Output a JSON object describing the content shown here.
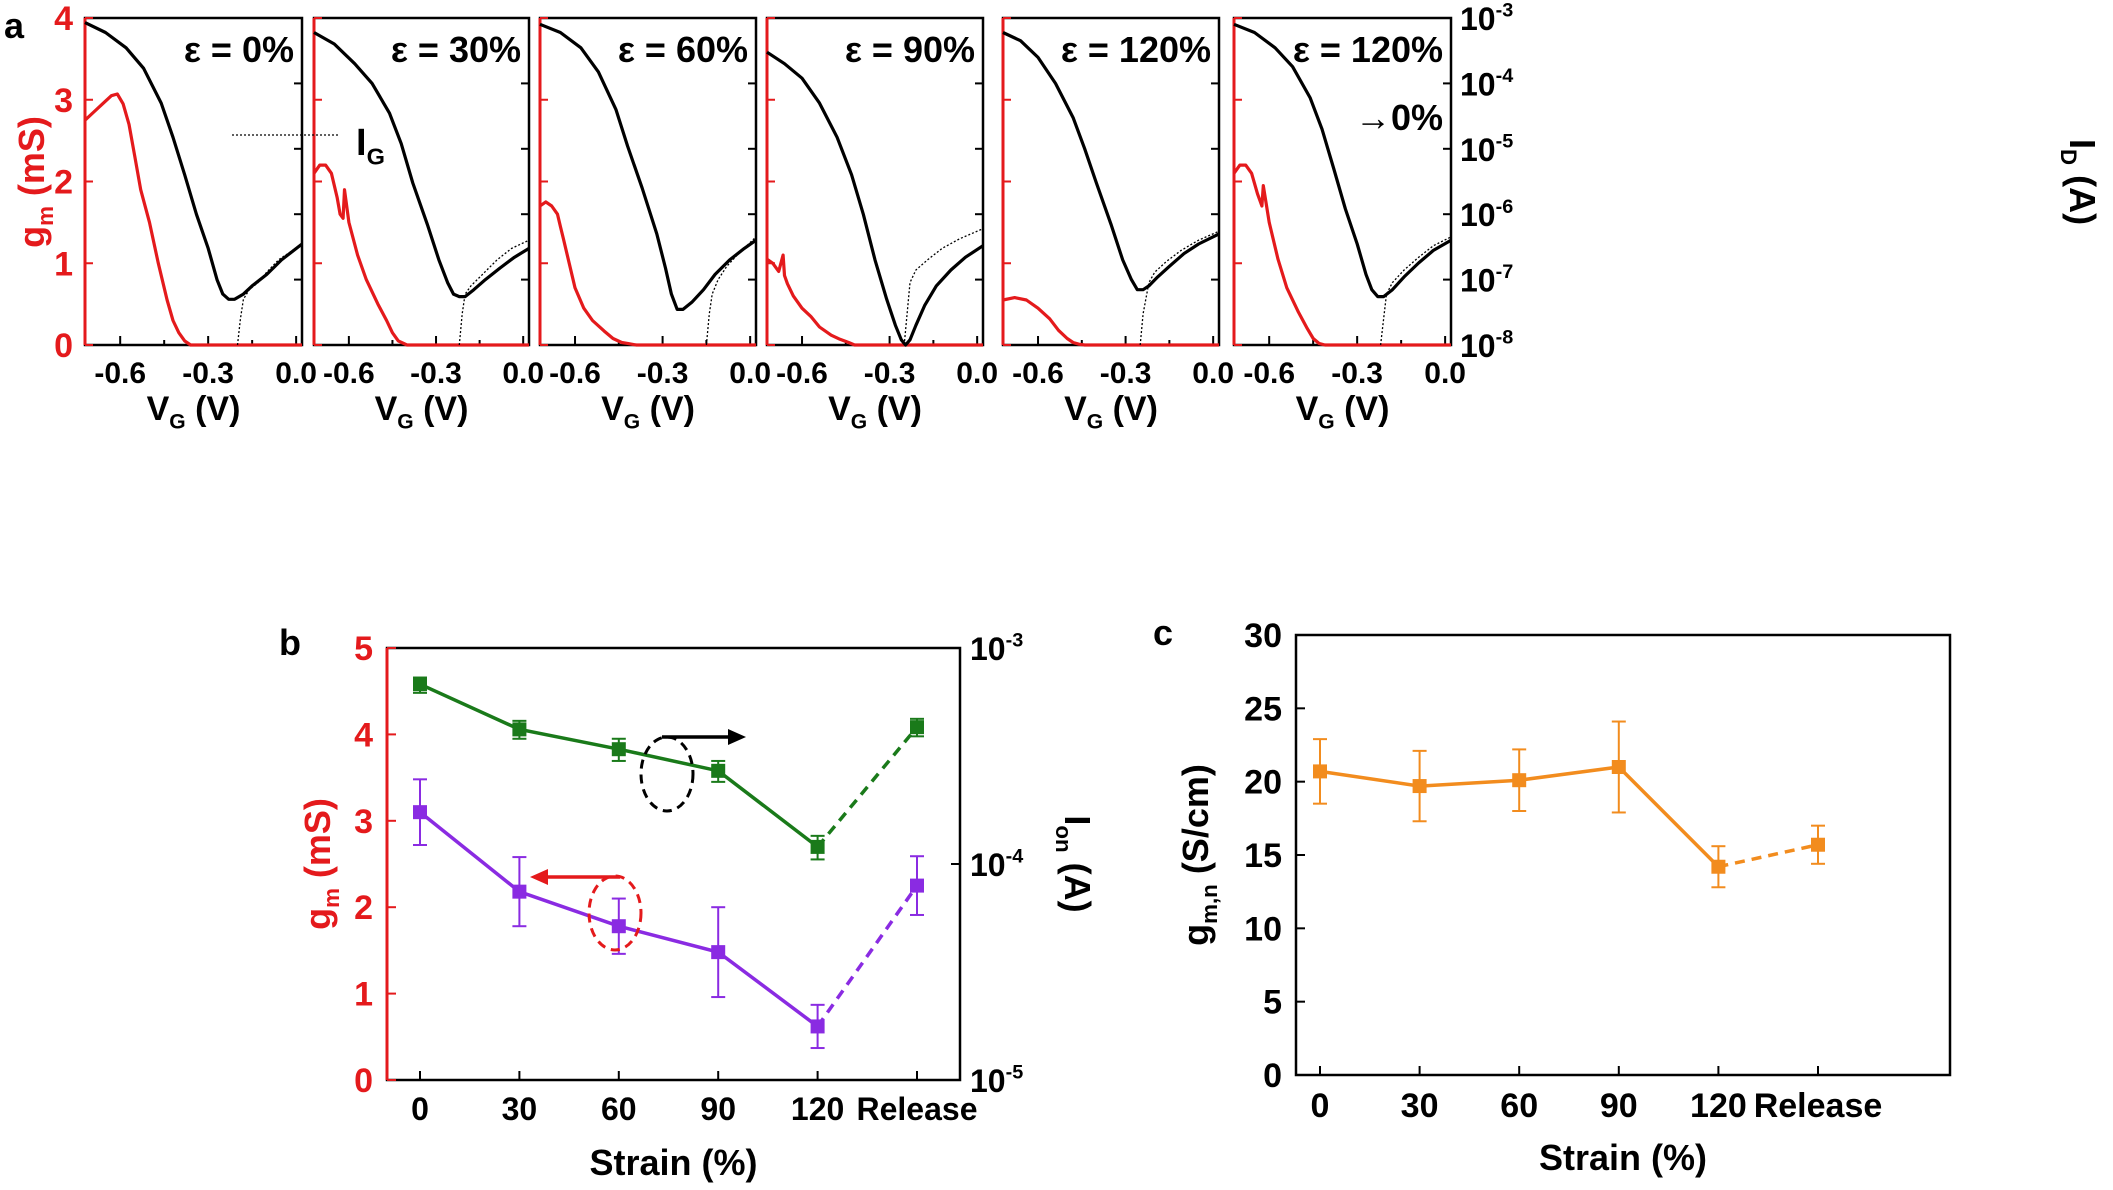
{
  "colors": {
    "red": "#e41a1c",
    "black": "#000000",
    "green": "#1a7a1a",
    "purple": "#8a2be2",
    "orange": "#f28c1e"
  },
  "panel_a": {
    "label": "a",
    "left_axis_label": {
      "base": "g",
      "sub": "m",
      "rest": " (mS)"
    },
    "right_axis_label": {
      "base": "I",
      "sub": "D",
      "rest": " (A)"
    },
    "x_axis_label": {
      "base": "V",
      "sub": "G",
      "rest": " (V)"
    },
    "left_ticks": [
      "0",
      "1",
      "2",
      "3",
      "4"
    ],
    "right_ticks": [
      {
        "base": "10",
        "exp": "-8"
      },
      {
        "base": "10",
        "exp": "-7"
      },
      {
        "base": "10",
        "exp": "-6"
      },
      {
        "base": "10",
        "exp": "-5"
      },
      {
        "base": "10",
        "exp": "-4"
      },
      {
        "base": "10",
        "exp": "-3"
      }
    ],
    "x_ticks": [
      "-0.6",
      "-0.3",
      "0.0"
    ],
    "legend": {
      "base": "I",
      "sub": "G"
    }
  },
  "panel_b": {
    "label": "b",
    "y_left_label": {
      "base": "g",
      "sub": "m",
      "rest": " (mS)"
    },
    "y_right_label": {
      "base": "I",
      "sub": "on",
      "rest": " (A)"
    },
    "x_label": "Strain (%)",
    "x_categories": [
      "0",
      "30",
      "60",
      "90",
      "120",
      "Release"
    ],
    "y_left_ticks": [
      "0",
      "1",
      "2",
      "3",
      "4",
      "5"
    ],
    "y_right_ticks": [
      {
        "base": "10",
        "exp": "-5"
      },
      {
        "base": "10",
        "exp": "-4"
      },
      {
        "base": "10",
        "exp": "-3"
      }
    ]
  },
  "panel_c": {
    "label": "c",
    "y_label": {
      "base": "g",
      "sub": "m,n",
      "rest": " (S/cm)"
    },
    "x_label": "Strain (%)",
    "x_categories": [
      "0",
      "30",
      "60",
      "90",
      "120",
      "Release"
    ],
    "y_ticks": [
      "0",
      "5",
      "10",
      "15",
      "20",
      "25",
      "30"
    ]
  },
  "chart_data": [
    {
      "type": "line",
      "title": "ε = 0%",
      "xlabel": "VG (V)",
      "ylabel": "gm (mS)",
      "y2label": "ID (A)",
      "xlim": [
        -0.72,
        0.02
      ],
      "ylim": [
        0,
        4
      ],
      "y2lim": [
        1e-08,
        0.001
      ],
      "series": [
        {
          "name": "gm",
          "axis": "left",
          "x": [
            -0.72,
            -0.69,
            -0.66,
            -0.63,
            -0.61,
            -0.59,
            -0.57,
            -0.55,
            -0.53,
            -0.5,
            -0.47,
            -0.44,
            -0.42,
            -0.4,
            -0.38,
            -0.36,
            0.02
          ],
          "values": [
            2.75,
            2.85,
            2.95,
            3.05,
            3.07,
            2.95,
            2.7,
            2.3,
            1.9,
            1.5,
            1.0,
            0.55,
            0.3,
            0.15,
            0.05,
            0.0,
            0.0
          ]
        },
        {
          "name": "ID",
          "axis": "right",
          "x": [
            -0.72,
            -0.65,
            -0.58,
            -0.52,
            -0.46,
            -0.42,
            -0.38,
            -0.34,
            -0.3,
            -0.27,
            -0.25,
            -0.23,
            -0.21,
            -0.18,
            -0.15,
            -0.1,
            -0.05,
            0.02
          ],
          "values": [
            0.00085,
            0.0006,
            0.00035,
            0.00017,
            5e-05,
            1.5e-05,
            4e-06,
            1e-06,
            3e-07,
            1e-07,
            6e-08,
            5e-08,
            5e-08,
            6e-08,
            8e-08,
            1.2e-07,
            2e-07,
            3.5e-07
          ]
        },
        {
          "name": "IG",
          "axis": "right",
          "x": [
            -0.2,
            -0.19,
            -0.18,
            -0.16,
            -0.13,
            -0.1,
            -0.06,
            0.02
          ],
          "values": [
            1e-08,
            2.5e-08,
            5e-08,
            7e-08,
            9e-08,
            1.3e-07,
            2e-07,
            3.5e-07
          ]
        }
      ]
    },
    {
      "type": "line",
      "title": "ε = 30%",
      "xlabel": "VG (V)",
      "ylabel": "gm (mS)",
      "y2label": "ID (A)",
      "xlim": [
        -0.72,
        0.02
      ],
      "ylim": [
        0,
        4
      ],
      "y2lim": [
        1e-08,
        0.001
      ],
      "series": [
        {
          "name": "gm",
          "axis": "left",
          "x": [
            -0.72,
            -0.7,
            -0.68,
            -0.66,
            -0.64,
            -0.63,
            -0.62,
            -0.615,
            -0.6,
            -0.57,
            -0.54,
            -0.5,
            -0.47,
            -0.45,
            -0.43,
            -0.4,
            0.02
          ],
          "values": [
            2.1,
            2.2,
            2.2,
            2.1,
            1.8,
            1.6,
            1.55,
            1.9,
            1.5,
            1.1,
            0.8,
            0.5,
            0.3,
            0.15,
            0.05,
            0.0,
            0.0
          ]
        },
        {
          "name": "ID",
          "axis": "right",
          "x": [
            -0.72,
            -0.65,
            -0.58,
            -0.52,
            -0.46,
            -0.42,
            -0.38,
            -0.33,
            -0.29,
            -0.26,
            -0.24,
            -0.22,
            -0.2,
            -0.17,
            -0.13,
            -0.08,
            -0.03,
            0.02
          ],
          "values": [
            0.0006,
            0.0004,
            0.0002,
            0.0001,
            3.5e-05,
            1.2e-05,
            3e-06,
            7e-07,
            2e-07,
            9e-08,
            6e-08,
            5.5e-08,
            5.5e-08,
            7e-08,
            1e-07,
            1.5e-07,
            2.2e-07,
            3e-07
          ]
        },
        {
          "name": "IG",
          "axis": "right",
          "x": [
            -0.22,
            -0.21,
            -0.2,
            -0.18,
            -0.14,
            -0.09,
            -0.04,
            0.02
          ],
          "values": [
            1e-08,
            3e-08,
            6e-08,
            8e-08,
            1.2e-07,
            2e-07,
            3e-07,
            4e-07
          ]
        }
      ]
    },
    {
      "type": "line",
      "title": "ε = 60%",
      "xlabel": "VG (V)",
      "ylabel": "gm (mS)",
      "y2label": "ID (A)",
      "xlim": [
        -0.72,
        0.02
      ],
      "ylim": [
        0,
        4
      ],
      "y2lim": [
        1e-08,
        0.001
      ],
      "series": [
        {
          "name": "gm",
          "axis": "left",
          "x": [
            -0.72,
            -0.7,
            -0.68,
            -0.66,
            -0.65,
            -0.64,
            -0.62,
            -0.6,
            -0.57,
            -0.54,
            -0.5,
            -0.47,
            -0.44,
            -0.42,
            -0.39,
            -0.36,
            0.02
          ],
          "values": [
            1.7,
            1.75,
            1.7,
            1.6,
            1.45,
            1.3,
            1.0,
            0.7,
            0.45,
            0.3,
            0.17,
            0.08,
            0.03,
            0.02,
            0.0,
            0.0,
            0.0
          ]
        },
        {
          "name": "ID",
          "axis": "right",
          "x": [
            -0.72,
            -0.65,
            -0.58,
            -0.52,
            -0.46,
            -0.42,
            -0.37,
            -0.32,
            -0.29,
            -0.27,
            -0.25,
            -0.23,
            -0.2,
            -0.16,
            -0.12,
            -0.07,
            -0.02,
            0.02
          ],
          "values": [
            0.0008,
            0.0006,
            0.00035,
            0.00015,
            4e-05,
            1.1e-05,
            2.5e-06,
            5e-07,
            1.5e-07,
            6e-08,
            3.5e-08,
            3.5e-08,
            4.5e-08,
            7e-08,
            1.2e-07,
            2e-07,
            3e-07,
            4e-07
          ]
        },
        {
          "name": "IG",
          "axis": "right",
          "x": [
            -0.15,
            -0.14,
            -0.13,
            -0.11,
            -0.08,
            -0.04,
            0.02
          ],
          "values": [
            1e-08,
            3e-08,
            6e-08,
            1e-07,
            1.6e-07,
            2.5e-07,
            4.5e-07
          ]
        }
      ]
    },
    {
      "type": "line",
      "title": "ε = 90%",
      "xlabel": "VG (V)",
      "ylabel": "gm (mS)",
      "y2label": "ID (A)",
      "xlim": [
        -0.72,
        0.02
      ],
      "ylim": [
        0,
        4
      ],
      "y2lim": [
        1e-08,
        0.001
      ],
      "series": [
        {
          "name": "gm",
          "axis": "left",
          "x": [
            -0.72,
            -0.7,
            -0.68,
            -0.665,
            -0.66,
            -0.65,
            -0.63,
            -0.6,
            -0.57,
            -0.54,
            -0.5,
            -0.47,
            -0.44,
            -0.42,
            -0.4,
            0.02
          ],
          "values": [
            1.05,
            1.0,
            0.9,
            1.1,
            0.85,
            0.75,
            0.6,
            0.45,
            0.35,
            0.22,
            0.12,
            0.07,
            0.03,
            0.0,
            0.0,
            0.0
          ]
        },
        {
          "name": "ID",
          "axis": "right",
          "x": [
            -0.72,
            -0.66,
            -0.6,
            -0.54,
            -0.48,
            -0.43,
            -0.39,
            -0.35,
            -0.31,
            -0.28,
            -0.26,
            -0.245,
            -0.23,
            -0.21,
            -0.18,
            -0.14,
            -0.09,
            -0.04,
            0.02
          ],
          "values": [
            0.0003,
            0.0002,
            0.00012,
            5e-05,
            1.5e-05,
            4e-06,
            1e-06,
            2e-07,
            5e-08,
            2e-08,
            1.2e-08,
            1e-08,
            1.2e-08,
            2e-08,
            4e-08,
            8e-08,
            1.4e-07,
            2.2e-07,
            3.3e-07
          ]
        },
        {
          "name": "IG",
          "axis": "right",
          "x": [
            -0.25,
            -0.24,
            -0.23,
            -0.21,
            -0.17,
            -0.12,
            -0.06,
            0.02
          ],
          "values": [
            1e-08,
            3e-08,
            9e-08,
            1.4e-07,
            2e-07,
            3e-07,
            4.2e-07,
            6e-07
          ]
        }
      ]
    },
    {
      "type": "line",
      "title": "ε = 120%",
      "xlabel": "VG (V)",
      "ylabel": "gm (mS)",
      "y2label": "ID (A)",
      "xlim": [
        -0.72,
        0.02
      ],
      "ylim": [
        0,
        4
      ],
      "y2lim": [
        1e-08,
        0.001
      ],
      "series": [
        {
          "name": "gm",
          "axis": "left",
          "x": [
            -0.72,
            -0.68,
            -0.64,
            -0.6,
            -0.56,
            -0.53,
            -0.5,
            -0.48,
            -0.46,
            -0.44,
            -0.42,
            0.02
          ],
          "values": [
            0.55,
            0.58,
            0.55,
            0.45,
            0.32,
            0.18,
            0.08,
            0.03,
            0.01,
            0.0,
            0.0,
            0.0
          ]
        },
        {
          "name": "ID",
          "axis": "right",
          "x": [
            -0.72,
            -0.66,
            -0.6,
            -0.54,
            -0.48,
            -0.44,
            -0.4,
            -0.35,
            -0.31,
            -0.28,
            -0.26,
            -0.24,
            -0.22,
            -0.19,
            -0.15,
            -0.1,
            -0.05,
            0.02
          ],
          "values": [
            0.0006,
            0.00045,
            0.00025,
            0.0001,
            3e-05,
            1e-05,
            3e-06,
            7e-07,
            2e-07,
            1e-07,
            7e-08,
            7e-08,
            8e-08,
            1.1e-07,
            1.6e-07,
            2.5e-07,
            3.5e-07,
            5e-07
          ]
        },
        {
          "name": "IG",
          "axis": "right",
          "x": [
            -0.25,
            -0.24,
            -0.22,
            -0.2,
            -0.16,
            -0.11,
            -0.05,
            0.02
          ],
          "values": [
            1e-08,
            3e-08,
            9e-08,
            1.3e-07,
            1.9e-07,
            2.8e-07,
            4e-07,
            5.5e-07
          ]
        }
      ]
    },
    {
      "type": "line",
      "title": "ε = 120%",
      "title2": "→0%",
      "xlabel": "VG (V)",
      "ylabel": "gm (mS)",
      "y2label": "ID (A)",
      "xlim": [
        -0.72,
        0.02
      ],
      "ylim": [
        0,
        4
      ],
      "y2lim": [
        1e-08,
        0.001
      ],
      "series": [
        {
          "name": "gm",
          "axis": "left",
          "x": [
            -0.72,
            -0.7,
            -0.68,
            -0.66,
            -0.64,
            -0.625,
            -0.62,
            -0.6,
            -0.57,
            -0.54,
            -0.5,
            -0.47,
            -0.45,
            -0.43,
            -0.41,
            0.02
          ],
          "values": [
            2.1,
            2.2,
            2.2,
            2.1,
            1.85,
            1.7,
            1.95,
            1.5,
            1.05,
            0.7,
            0.4,
            0.2,
            0.08,
            0.02,
            0.0,
            0.0
          ]
        },
        {
          "name": "ID",
          "axis": "right",
          "x": [
            -0.72,
            -0.65,
            -0.58,
            -0.52,
            -0.46,
            -0.42,
            -0.38,
            -0.34,
            -0.3,
            -0.27,
            -0.25,
            -0.23,
            -0.21,
            -0.18,
            -0.14,
            -0.09,
            -0.04,
            0.02
          ],
          "values": [
            0.0008,
            0.0006,
            0.00035,
            0.00018,
            6e-05,
            2e-05,
            5e-06,
            1.2e-06,
            3.5e-07,
            1.2e-07,
            7e-08,
            5.5e-08,
            5.5e-08,
            7e-08,
            1.1e-07,
            1.8e-07,
            2.8e-07,
            4e-07
          ]
        },
        {
          "name": "IG",
          "axis": "right",
          "x": [
            -0.22,
            -0.21,
            -0.2,
            -0.18,
            -0.14,
            -0.09,
            -0.04,
            0.02
          ],
          "values": [
            1e-08,
            2.5e-08,
            6e-08,
            9e-08,
            1.4e-07,
            2.2e-07,
            3.3e-07,
            4.5e-07
          ]
        }
      ]
    },
    {
      "type": "line",
      "title": "",
      "xlabel": "Strain (%)",
      "ylabel": "gm (mS)",
      "y2label": "Ion (A)",
      "categories": [
        "0",
        "30",
        "60",
        "90",
        "120",
        "Release"
      ],
      "ylim": [
        0,
        5
      ],
      "y2lim": [
        1e-05,
        0.001
      ],
      "series": [
        {
          "name": "gm",
          "axis": "left",
          "values": [
            3.1,
            2.18,
            1.78,
            1.48,
            0.62,
            2.25
          ],
          "errors": [
            0.38,
            0.4,
            0.32,
            0.52,
            0.25,
            0.34
          ]
        },
        {
          "name": "Ion",
          "axis": "right",
          "values": [
            0.00068,
            0.00042,
            0.00034,
            0.00027,
            0.00012,
            0.00043
          ],
          "errors_low": [
            0.00062,
            0.00038,
            0.0003,
            0.00024,
            0.000105,
            0.00039
          ],
          "errors_high": [
            0.00073,
            0.00046,
            0.00038,
            0.0003,
            0.000135,
            0.00047
          ]
        }
      ]
    },
    {
      "type": "line",
      "title": "",
      "xlabel": "Strain (%)",
      "ylabel": "gm,n (S/cm)",
      "categories": [
        "0",
        "30",
        "60",
        "90",
        "120",
        "Release"
      ],
      "ylim": [
        0,
        30
      ],
      "series": [
        {
          "name": "gm,n",
          "values": [
            20.7,
            19.7,
            20.1,
            21.0,
            14.2,
            15.7
          ],
          "errors": [
            2.2,
            2.4,
            2.1,
            3.1,
            1.4,
            1.3
          ]
        }
      ]
    }
  ]
}
